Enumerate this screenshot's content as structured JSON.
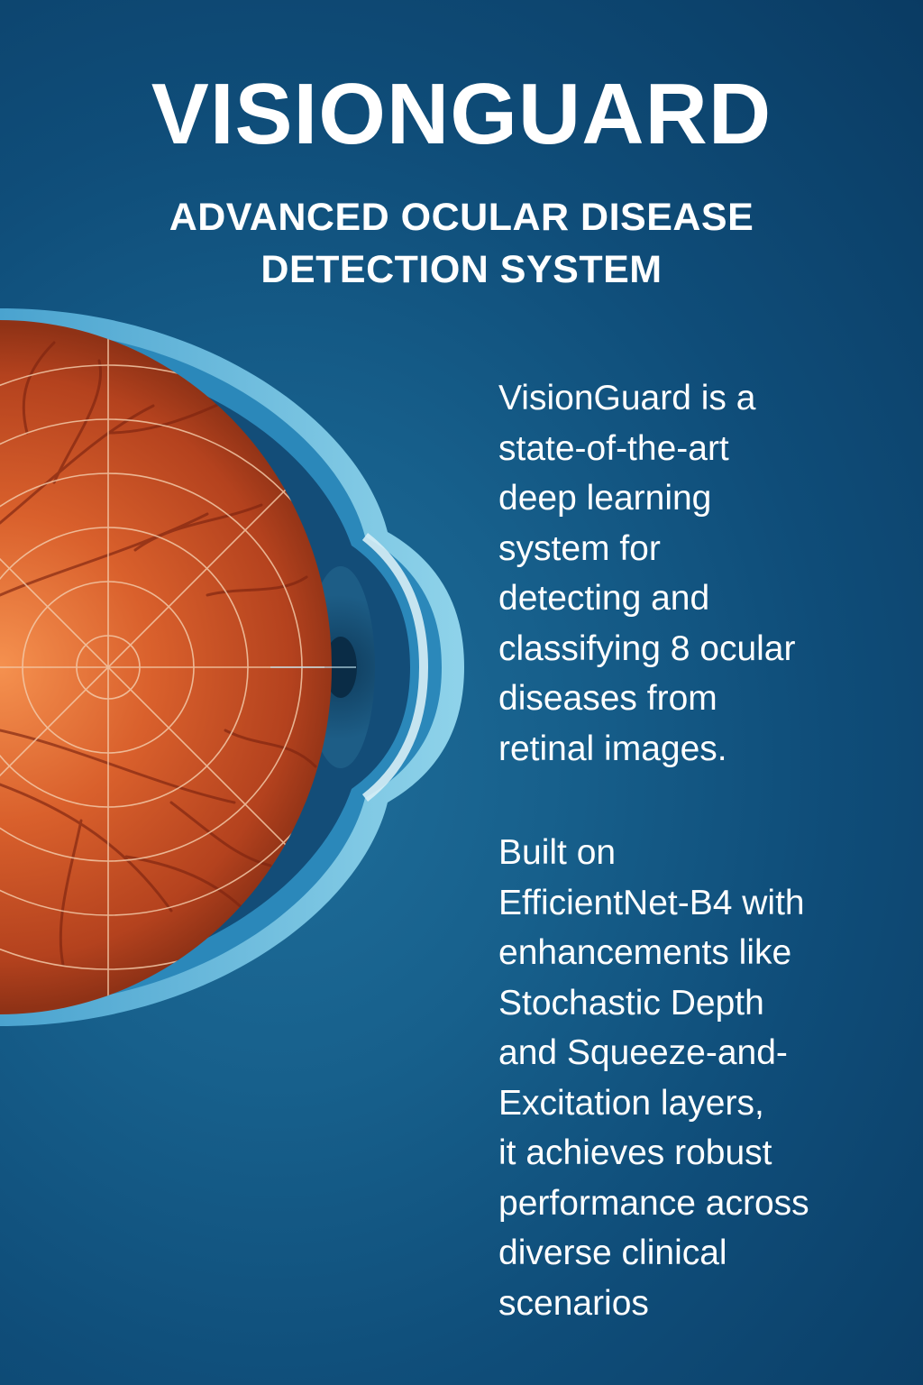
{
  "title": "VISIONGUARD",
  "subtitle": {
    "line1": "ADVANCED OCULAR DISEASE",
    "line2": "DETECTION SYSTEM"
  },
  "illustration": {
    "icon": "eye-cross-section-icon",
    "colors": {
      "background_dark": "#0a3b63",
      "background_mid": "#17608c",
      "retina_light": "#f08a4b",
      "retina_dark": "#a5391a",
      "sclera_outer": "#7ec8e3",
      "sclera_inner": "#2a86b8",
      "grid_lines": "#f3c9a8"
    }
  },
  "description": {
    "paragraph1": [
      "VisionGuard is a",
      "state-of-the-art",
      "deep learning",
      "system for",
      "detecting and",
      "classifying 8 ocular",
      "diseases from",
      "retinal images."
    ],
    "paragraph2": [
      "Built on",
      "EfficientNet-B4 with",
      "enhancements like",
      "Stochastic Depth",
      "and Squeeze-and-",
      "Excitation layers,",
      "it achieves robust",
      "performance across",
      "diverse clinical",
      "scenarios"
    ]
  }
}
